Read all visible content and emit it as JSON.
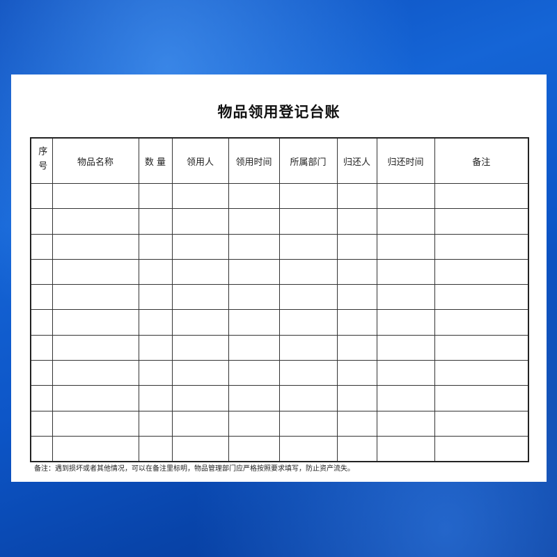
{
  "document": {
    "title": "物品领用登记台账",
    "headers": [
      "序号",
      "物品名称",
      "数 量",
      "领用人",
      "领用时间",
      "所属部门",
      "归还人",
      "归还时间",
      "备注"
    ],
    "empty_row_count": 11,
    "footnote": "备注：遇到损坏或者其他情况，可以在备注里标明，物品管理部门应严格按照要求填写，防止资产流失。"
  }
}
